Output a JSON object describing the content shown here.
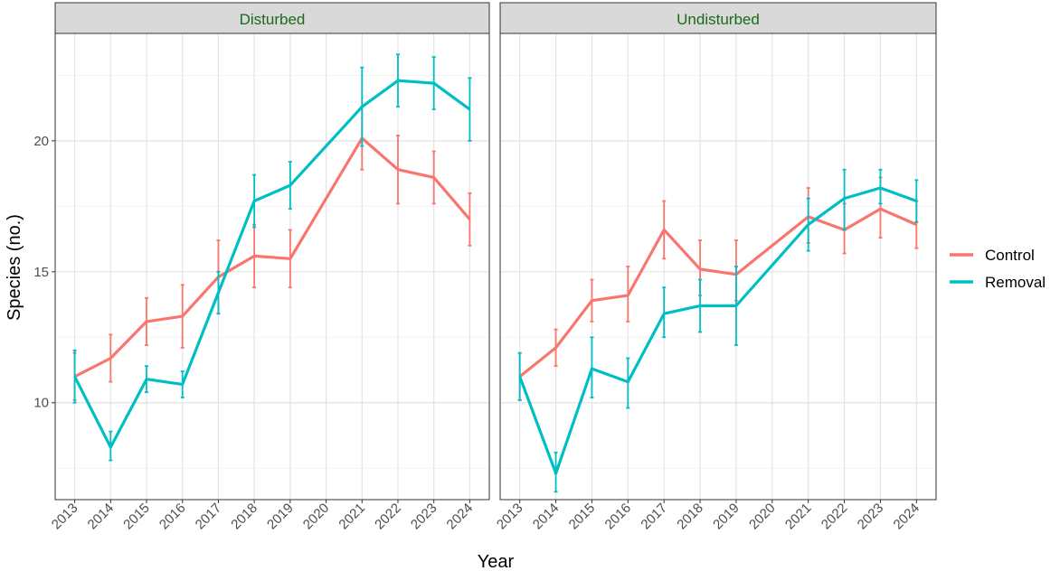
{
  "chart_data": {
    "type": "line",
    "facet_by": "disturbance",
    "xlabel": "Year",
    "ylabel": "Species (no.)",
    "x": [
      2013,
      2014,
      2015,
      2016,
      2017,
      2018,
      2019,
      2020,
      2021,
      2022,
      2023,
      2024
    ],
    "ylim": [
      6.3,
      24.1
    ],
    "yticks": [
      10,
      15,
      20
    ],
    "grid": true,
    "legend_position": "right",
    "series_colors": {
      "Control": "#f8766d",
      "Removal": "#00bfc4"
    },
    "legend": [
      "Control",
      "Removal"
    ],
    "panels": [
      {
        "title": "Disturbed",
        "series": [
          {
            "name": "Control",
            "values": [
              11.0,
              11.7,
              13.1,
              13.3,
              14.8,
              15.6,
              15.5,
              null,
              20.1,
              18.9,
              18.6,
              17.0
            ],
            "err_low": [
              10.1,
              10.8,
              12.2,
              12.1,
              13.4,
              14.4,
              14.4,
              null,
              18.9,
              17.6,
              17.6,
              16.0
            ],
            "err_high": [
              11.9,
              12.6,
              14.0,
              14.5,
              16.2,
              16.8,
              16.6,
              null,
              21.3,
              20.2,
              19.6,
              18.0
            ]
          },
          {
            "name": "Removal",
            "values": [
              11.0,
              8.3,
              10.9,
              10.7,
              14.2,
              17.7,
              18.3,
              null,
              21.3,
              22.3,
              22.2,
              21.2
            ],
            "err_low": [
              10.0,
              7.8,
              10.4,
              10.2,
              13.4,
              16.7,
              17.4,
              null,
              19.8,
              21.3,
              21.2,
              20.0
            ],
            "err_high": [
              12.0,
              8.9,
              11.4,
              11.2,
              15.0,
              18.7,
              19.2,
              null,
              22.8,
              23.3,
              23.2,
              22.4
            ]
          }
        ]
      },
      {
        "title": "Undisturbed",
        "series": [
          {
            "name": "Control",
            "values": [
              11.0,
              12.1,
              13.9,
              14.1,
              16.6,
              15.1,
              14.9,
              null,
              17.1,
              16.6,
              17.4,
              16.8
            ],
            "err_low": [
              10.1,
              11.4,
              13.1,
              13.1,
              15.5,
              14.1,
              13.9,
              null,
              16.1,
              15.7,
              16.3,
              15.9
            ],
            "err_high": [
              11.9,
              12.8,
              14.7,
              15.2,
              17.7,
              16.2,
              16.2,
              null,
              18.2,
              17.6,
              18.6,
              17.7
            ]
          },
          {
            "name": "Removal",
            "values": [
              11.0,
              7.3,
              11.3,
              10.8,
              13.4,
              13.7,
              13.7,
              null,
              16.8,
              17.8,
              18.2,
              17.7
            ],
            "err_low": [
              10.1,
              6.6,
              10.2,
              9.8,
              12.5,
              12.7,
              12.2,
              null,
              15.8,
              16.6,
              17.6,
              16.9
            ],
            "err_high": [
              11.9,
              8.1,
              12.5,
              11.7,
              14.4,
              14.7,
              15.2,
              null,
              17.8,
              18.9,
              18.9,
              18.5
            ]
          }
        ]
      }
    ]
  }
}
